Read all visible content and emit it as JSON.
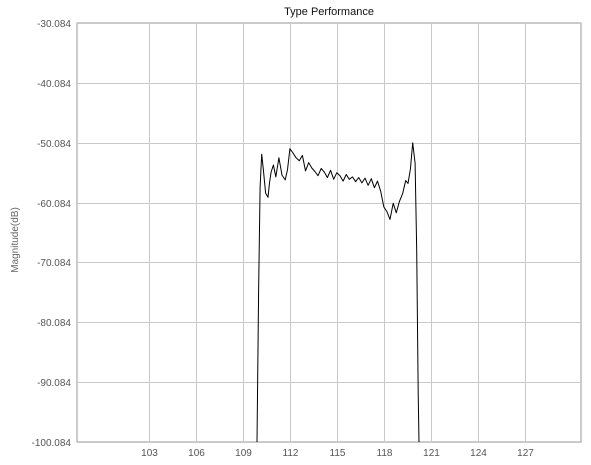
{
  "chart_data": {
    "type": "line",
    "title": "Type Performance",
    "xlabel": "",
    "ylabel": "Magnitude(dB)",
    "xlim": [
      98.4,
      130.6
    ],
    "ylim": [
      -100.084,
      -30.084
    ],
    "x_ticks": [
      103,
      106,
      109,
      112,
      115,
      118,
      121,
      124,
      127
    ],
    "y_ticks": [
      -30.084,
      -40.084,
      -50.084,
      -60.084,
      -70.084,
      -80.084,
      -90.084,
      -100.084
    ],
    "grid": true,
    "series": [
      {
        "color": "#000000",
        "x": [
          109.9,
          110.0,
          110.1,
          110.2,
          110.3,
          110.45,
          110.6,
          110.7,
          110.8,
          110.95,
          111.1,
          111.3,
          111.5,
          111.7,
          111.85,
          112.0,
          112.2,
          112.4,
          112.6,
          112.8,
          113.0,
          113.2,
          113.4,
          113.6,
          113.8,
          114.0,
          114.2,
          114.4,
          114.6,
          114.8,
          115.0,
          115.2,
          115.4,
          115.6,
          115.8,
          116.0,
          116.2,
          116.4,
          116.6,
          116.8,
          117.0,
          117.2,
          117.4,
          117.6,
          117.8,
          118.0,
          118.2,
          118.4,
          118.6,
          118.8,
          119.0,
          119.2,
          119.4,
          119.55,
          119.7,
          119.85,
          120.0,
          120.1,
          120.2,
          120.25
        ],
        "y": [
          -100.084,
          -75.0,
          -57.5,
          -52.0,
          -54.5,
          -58.5,
          -59.2,
          -56.8,
          -55.0,
          -53.8,
          -55.8,
          -52.6,
          -55.5,
          -56.3,
          -54.6,
          -51.1,
          -51.8,
          -52.6,
          -53.1,
          -52.2,
          -54.8,
          -53.4,
          -54.3,
          -54.9,
          -55.6,
          -54.4,
          -55.0,
          -55.9,
          -54.7,
          -56.2,
          -55.1,
          -55.6,
          -56.5,
          -55.4,
          -56.2,
          -55.8,
          -56.6,
          -55.9,
          -56.8,
          -56.0,
          -57.2,
          -56.1,
          -57.6,
          -56.5,
          -58.2,
          -60.8,
          -61.6,
          -62.9,
          -60.2,
          -61.8,
          -59.9,
          -58.6,
          -56.4,
          -56.9,
          -54.5,
          -50.1,
          -53.5,
          -68.0,
          -92.0,
          -100.084
        ]
      }
    ]
  }
}
